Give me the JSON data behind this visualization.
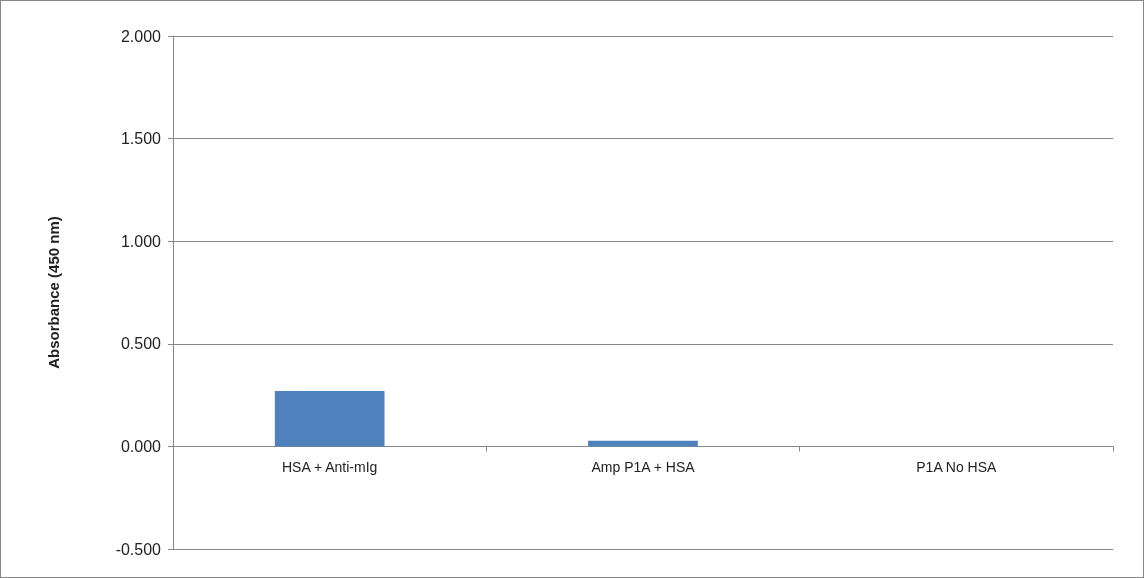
{
  "chart_data": {
    "type": "bar",
    "ylabel": "Absorbance (450 nm)",
    "categories": [
      "HSA + Anti-mIg",
      "Amp P1A + HSA",
      "P1A No HSA"
    ],
    "values": [
      0.27,
      0.028,
      0
    ],
    "color": "#4f81bd",
    "ylim": [
      -0.5,
      2
    ],
    "yticks": [
      {
        "value": -0.5,
        "label": "-0.500"
      },
      {
        "value": 0,
        "label": "0.000"
      },
      {
        "value": 0.5,
        "label": "0.500"
      },
      {
        "value": 1,
        "label": "1.000"
      },
      {
        "value": 1.5,
        "label": "1.500"
      },
      {
        "value": 2,
        "label": "2.000"
      }
    ],
    "grid": "y"
  }
}
